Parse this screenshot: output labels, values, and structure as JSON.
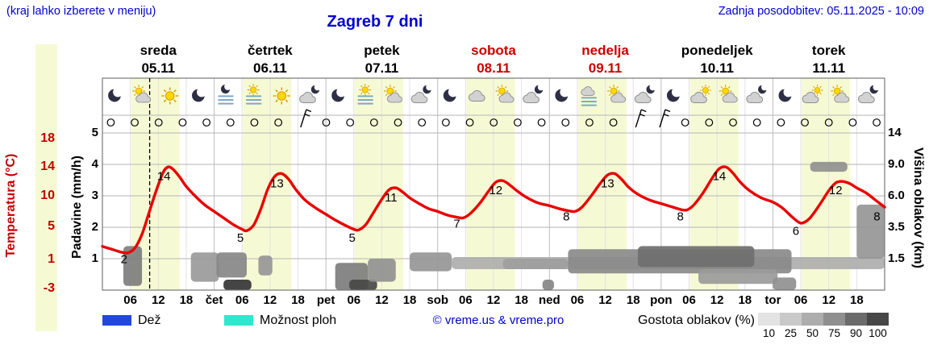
{
  "header": {
    "hint": "(kraj lahko izberete v meniju)",
    "title": "Zagreb 7 dni",
    "updated": "Zadnja posodobitev: 05.11.2025 - 10:09"
  },
  "axes": {
    "temp_label": "Temperatura (°C)",
    "precip_label": "Padavine (mm/h)",
    "cloud_label": "Višina oblakov (km)",
    "temp_ticks": [
      "18",
      "14",
      "10",
      "5",
      "1",
      "-3"
    ],
    "precip_ticks": [
      "5",
      "4",
      "3",
      "2",
      "1"
    ],
    "cloud_ticks": [
      "14",
      "9.0",
      "6.0",
      "3.5",
      "1.5"
    ],
    "hour_ticks": [
      "06",
      "12",
      "18"
    ]
  },
  "days": [
    {
      "name": "sreda",
      "date": "05.11",
      "abbr": "",
      "color": "#000000"
    },
    {
      "name": "četrtek",
      "date": "06.11",
      "abbr": "čet",
      "color": "#000000"
    },
    {
      "name": "petek",
      "date": "07.11",
      "abbr": "pet",
      "color": "#000000"
    },
    {
      "name": "sobota",
      "date": "08.11",
      "abbr": "sob",
      "color": "#cc0000"
    },
    {
      "name": "nedelja",
      "date": "09.11",
      "abbr": "ned",
      "color": "#cc0000"
    },
    {
      "name": "ponedeljek",
      "date": "10.11",
      "abbr": "pon",
      "color": "#000000"
    },
    {
      "name": "torek",
      "date": "11.11",
      "abbr": "tor",
      "color": "#000000"
    }
  ],
  "legend": {
    "rain": "Dež",
    "showers": "Možnost ploh",
    "credit": "© vreme.us & vreme.pro",
    "cloud_density": "Gostota oblakov (%)",
    "density_ticks": [
      "10",
      "25",
      "50",
      "75",
      "90",
      "100"
    ],
    "density_colors": [
      "#e3e3e3",
      "#c9c9c9",
      "#adadad",
      "#8f8f8f",
      "#6b6b6b",
      "#474747"
    ],
    "rain_color": "#2247e0",
    "showers_color": "#2de8cf"
  },
  "chart_data": {
    "type": "line",
    "title": "Zagreb 7 dni",
    "x_unit": "hours from 05.11 00:00",
    "ylabel_left": "Temperatura (°C)",
    "ylabel_right": "Višina oblakov (km)",
    "temp_axis_range": [
      -3,
      18
    ],
    "precip_axis_range": [
      0,
      5
    ],
    "cloud_axis_km": [
      1.5,
      3.5,
      6.0,
      9.0,
      14
    ],
    "temp_series": [
      [
        0,
        2.9
      ],
      [
        2,
        2.5
      ],
      [
        4,
        2.1
      ],
      [
        5.5,
        2.0
      ],
      [
        7,
        2.7
      ],
      [
        8.5,
        4.6
      ],
      [
        10,
        7.6
      ],
      [
        11.5,
        10.6
      ],
      [
        13,
        13.2
      ],
      [
        14,
        14.0
      ],
      [
        15,
        13.8
      ],
      [
        16.5,
        12.7
      ],
      [
        18,
        11.3
      ],
      [
        20,
        9.9
      ],
      [
        22,
        8.7
      ],
      [
        24,
        7.8
      ],
      [
        26,
        6.9
      ],
      [
        28,
        6.0
      ],
      [
        30,
        5.3
      ],
      [
        31,
        5.1
      ],
      [
        32.5,
        5.9
      ],
      [
        34,
        8.1
      ],
      [
        35.5,
        10.9
      ],
      [
        37,
        12.7
      ],
      [
        38.5,
        13.1
      ],
      [
        40,
        12.3
      ],
      [
        41.5,
        10.9
      ],
      [
        43.5,
        9.4
      ],
      [
        46,
        8.2
      ],
      [
        48,
        7.4
      ],
      [
        50,
        6.6
      ],
      [
        52,
        5.9
      ],
      [
        54,
        5.3
      ],
      [
        55,
        5.2
      ],
      [
        56.5,
        5.9
      ],
      [
        58,
        7.4
      ],
      [
        60,
        9.5
      ],
      [
        61.5,
        10.8
      ],
      [
        63,
        11.1
      ],
      [
        64.5,
        10.5
      ],
      [
        66,
        9.7
      ],
      [
        68,
        8.9
      ],
      [
        70,
        8.2
      ],
      [
        72,
        7.8
      ],
      [
        74,
        7.3
      ],
      [
        76,
        7.0
      ],
      [
        77.5,
        6.9
      ],
      [
        79,
        7.5
      ],
      [
        81,
        8.9
      ],
      [
        83,
        10.7
      ],
      [
        84.5,
        11.9
      ],
      [
        86,
        12.1
      ],
      [
        87.5,
        11.5
      ],
      [
        89,
        10.7
      ],
      [
        91,
        9.8
      ],
      [
        93.5,
        9.0
      ],
      [
        96,
        8.6
      ],
      [
        98,
        8.2
      ],
      [
        100,
        7.9
      ],
      [
        101.5,
        7.8
      ],
      [
        103,
        8.4
      ],
      [
        105,
        10.0
      ],
      [
        107,
        11.8
      ],
      [
        108.5,
        12.9
      ],
      [
        110,
        13.1
      ],
      [
        111.5,
        12.3
      ],
      [
        113,
        11.2
      ],
      [
        115,
        10.2
      ],
      [
        117.5,
        9.4
      ],
      [
        120,
        8.9
      ],
      [
        122,
        8.5
      ],
      [
        124,
        8.1
      ],
      [
        125.5,
        8.0
      ],
      [
        127,
        8.7
      ],
      [
        129,
        10.4
      ],
      [
        131,
        12.5
      ],
      [
        132.5,
        13.8
      ],
      [
        134,
        14.0
      ],
      [
        135.5,
        13.1
      ],
      [
        137,
        11.9
      ],
      [
        139,
        10.7
      ],
      [
        141.5,
        9.7
      ],
      [
        144,
        9.1
      ],
      [
        146,
        8.3
      ],
      [
        148,
        7.1
      ],
      [
        149.5,
        6.3
      ],
      [
        150.5,
        6.2
      ],
      [
        152,
        6.9
      ],
      [
        154,
        8.7
      ],
      [
        156,
        10.7
      ],
      [
        157.5,
        11.8
      ],
      [
        159,
        12.0
      ],
      [
        160.5,
        11.7
      ],
      [
        162,
        11.1
      ],
      [
        164,
        10.4
      ],
      [
        166,
        9.4
      ],
      [
        168,
        8.4
      ]
    ],
    "temp_extremes": [
      {
        "t": 5.5,
        "v": 2,
        "label": "2",
        "kind": "min"
      },
      {
        "t": 13.7,
        "v": 14,
        "label": "14",
        "kind": "max"
      },
      {
        "t": 30.5,
        "v": 5,
        "label": "5",
        "kind": "min"
      },
      {
        "t": 38,
        "v": 13,
        "label": "13",
        "kind": "max"
      },
      {
        "t": 54.5,
        "v": 5,
        "label": "5",
        "kind": "min"
      },
      {
        "t": 62.5,
        "v": 11,
        "label": "11",
        "kind": "max"
      },
      {
        "t": 77,
        "v": 7,
        "label": "7",
        "kind": "min"
      },
      {
        "t": 85,
        "v": 12,
        "label": "12",
        "kind": "max"
      },
      {
        "t": 100.5,
        "v": 8,
        "label": "8",
        "kind": "min"
      },
      {
        "t": 109,
        "v": 13,
        "label": "13",
        "kind": "max"
      },
      {
        "t": 125,
        "v": 8,
        "label": "8",
        "kind": "min"
      },
      {
        "t": 133,
        "v": 14,
        "label": "14",
        "kind": "max"
      },
      {
        "t": 149.8,
        "v": 6,
        "label": "6",
        "kind": "min"
      },
      {
        "t": 158,
        "v": 12,
        "label": "12",
        "kind": "max"
      },
      {
        "t": 167.2,
        "v": 8,
        "label": "8",
        "kind": "min"
      }
    ],
    "day_bands": {
      "start_hour": 6.2,
      "end_hour": 16.6
    },
    "now_hour": 10.15,
    "wind_symbols": [
      "o",
      "o",
      "o",
      "o",
      "o",
      "o",
      "o",
      "o",
      "b",
      "o",
      "o",
      "o",
      "o",
      "o",
      "o",
      "o",
      "o",
      "o",
      "o",
      "o",
      "o",
      "o",
      "b",
      "b",
      "o",
      "o",
      "o",
      "o",
      "o",
      "o",
      "o",
      "o",
      "o"
    ],
    "icons": [
      {
        "t": 2.5,
        "type": "moon"
      },
      {
        "t": 8.5,
        "type": "sun-cloud"
      },
      {
        "t": 14.5,
        "type": "sun"
      },
      {
        "t": 20.5,
        "type": "moon"
      },
      {
        "t": 26.5,
        "type": "fog-moon"
      },
      {
        "t": 32.5,
        "type": "fog-sun"
      },
      {
        "t": 38.5,
        "type": "sun"
      },
      {
        "t": 44.5,
        "type": "cloud-moon"
      },
      {
        "t": 50.5,
        "type": "moon"
      },
      {
        "t": 56.5,
        "type": "fog-sun"
      },
      {
        "t": 62.5,
        "type": "sun-cloud"
      },
      {
        "t": 68.5,
        "type": "cloud-moon"
      },
      {
        "t": 74.5,
        "type": "moon"
      },
      {
        "t": 80.5,
        "type": "cloud"
      },
      {
        "t": 86.5,
        "type": "sun-cloud"
      },
      {
        "t": 92.5,
        "type": "cloud-moon"
      },
      {
        "t": 98.5,
        "type": "moon"
      },
      {
        "t": 104.5,
        "type": "fog-cloud"
      },
      {
        "t": 110.5,
        "type": "sun-cloud"
      },
      {
        "t": 116.5,
        "type": "cloud-moon"
      },
      {
        "t": 122.5,
        "type": "moon"
      },
      {
        "t": 128.5,
        "type": "cloud-sun"
      },
      {
        "t": 134.5,
        "type": "sun-cloud"
      },
      {
        "t": 140.5,
        "type": "cloud-moon"
      },
      {
        "t": 146.5,
        "type": "moon"
      },
      {
        "t": 152.5,
        "type": "cloud-sun"
      },
      {
        "t": 158.5,
        "type": "sun-cloud"
      },
      {
        "t": 164.5,
        "type": "cloud-moon"
      }
    ],
    "clouds": [
      {
        "t0": 4.5,
        "t1": 8.5,
        "k0": 0.2,
        "k1": 2.3,
        "d": 55
      },
      {
        "t0": 19,
        "t1": 25,
        "k0": 0.4,
        "k1": 1.9,
        "d": 40
      },
      {
        "t0": 26,
        "t1": 32,
        "k0": 0,
        "k1": 0.5,
        "d": 92
      },
      {
        "t0": 24.5,
        "t1": 31,
        "k0": 0.6,
        "k1": 1.9,
        "d": 50
      },
      {
        "t0": 33.5,
        "t1": 36.5,
        "k0": 0.7,
        "k1": 1.7,
        "d": 42
      },
      {
        "t0": 50,
        "t1": 57,
        "k0": 0,
        "k1": 1.3,
        "d": 55
      },
      {
        "t0": 53,
        "t1": 59,
        "k0": 0,
        "k1": 0.5,
        "d": 82
      },
      {
        "t0": 57,
        "t1": 63,
        "k0": 0.4,
        "k1": 1.5,
        "d": 45
      },
      {
        "t0": 66,
        "t1": 75,
        "k0": 0.9,
        "k1": 1.9,
        "d": 42
      },
      {
        "t0": 75,
        "t1": 168,
        "k0": 1.0,
        "k1": 1.6,
        "d": 30
      },
      {
        "t0": 86,
        "t1": 100,
        "k0": 1.0,
        "k1": 1.5,
        "d": 38
      },
      {
        "t0": 94.5,
        "t1": 97,
        "k0": 0,
        "k1": 0.5,
        "d": 50
      },
      {
        "t0": 100,
        "t1": 148,
        "k0": 0.8,
        "k1": 2.1,
        "d": 48
      },
      {
        "t0": 115,
        "t1": 140,
        "k0": 1.1,
        "k1": 2.3,
        "d": 62
      },
      {
        "t0": 128,
        "t1": 145,
        "k0": 0.3,
        "k1": 1.0,
        "d": 40
      },
      {
        "t0": 144,
        "t1": 149,
        "k0": 0,
        "k1": 0.6,
        "d": 45
      },
      {
        "t0": 152,
        "t1": 160,
        "k0": 8.3,
        "k1": 9.4,
        "d": 45
      },
      {
        "t0": 162,
        "t1": 168,
        "k0": 1.5,
        "k1": 5.3,
        "d": 42
      }
    ],
    "colors": {
      "curve": "#e80000",
      "day_band": "#f6fad4",
      "now_line": "#000000"
    }
  }
}
